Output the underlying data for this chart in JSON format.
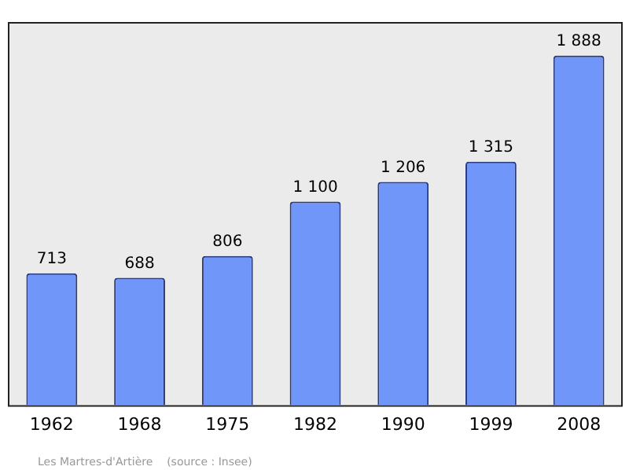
{
  "chart_data": {
    "type": "bar",
    "categories": [
      "1962",
      "1968",
      "1975",
      "1982",
      "1990",
      "1999",
      "2008"
    ],
    "values": [
      713,
      688,
      806,
      1100,
      1206,
      1315,
      1888
    ],
    "value_labels": [
      "713",
      "688",
      "806",
      "1 100",
      "1 206",
      "1 315",
      "1 888"
    ],
    "color": "#6f96f8",
    "ylim": [
      0,
      2070
    ],
    "tick_labels": "x",
    "grid": false,
    "annotations": [
      "Les Martres-d'Artière    (source : Insee)"
    ]
  }
}
